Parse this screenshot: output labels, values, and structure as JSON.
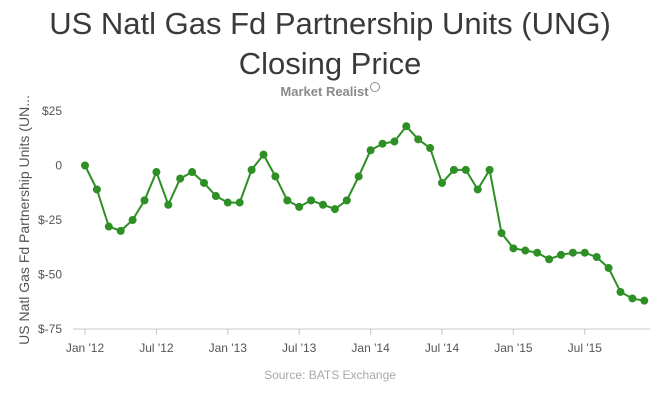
{
  "chart_data": {
    "type": "line",
    "title": [
      "US Natl Gas Fd Partnership Units (UNG)",
      "Closing Price"
    ],
    "ylabel": "US Natl Gas Fd Partnership Units (UN...",
    "xlabel": "",
    "ylim": [
      -75,
      25
    ],
    "yticks": [
      25,
      0,
      -25,
      -50,
      -75
    ],
    "ytick_labels": [
      "$25",
      "0",
      "$-25",
      "$-50",
      "$-75"
    ],
    "xlim": [
      0,
      48
    ],
    "xticks": [
      0,
      6,
      12,
      18,
      24,
      30,
      36,
      42
    ],
    "xtick_labels": [
      "Jan '12",
      "Jul '12",
      "Jan '13",
      "Jul '13",
      "Jan '14",
      "Jul '14",
      "Jan '15",
      "Jul '15"
    ],
    "grid": false,
    "legend": "none",
    "series": [
      {
        "color": "#2d8f24",
        "x": [
          0,
          1,
          2,
          3,
          4,
          5,
          6,
          7,
          8,
          9,
          10,
          11,
          12,
          13,
          14,
          15,
          16,
          17,
          18,
          19,
          20,
          21,
          22,
          23,
          24,
          25,
          26,
          27,
          28,
          29,
          30,
          31,
          32,
          33,
          34,
          35,
          36,
          37,
          38,
          39,
          40,
          41,
          42,
          43,
          44,
          45,
          46,
          47
        ],
        "values": [
          0,
          -11,
          -28,
          -30,
          -25,
          -16,
          -3,
          -18,
          -6,
          -3,
          -8,
          -14,
          -17,
          -17,
          -2,
          5,
          -5,
          -16,
          -19,
          -16,
          -18,
          -20,
          -16,
          -5,
          7,
          10,
          11,
          18,
          12,
          8,
          -8,
          -2,
          -2,
          -11,
          -2,
          -31,
          -38,
          -39,
          -40,
          -43,
          -41,
          -40,
          -40,
          -42,
          -47,
          -58,
          -61,
          -62
        ]
      }
    ]
  },
  "brand": {
    "text": "Market Realist"
  },
  "source": {
    "text": "Source: BATS Exchange"
  }
}
